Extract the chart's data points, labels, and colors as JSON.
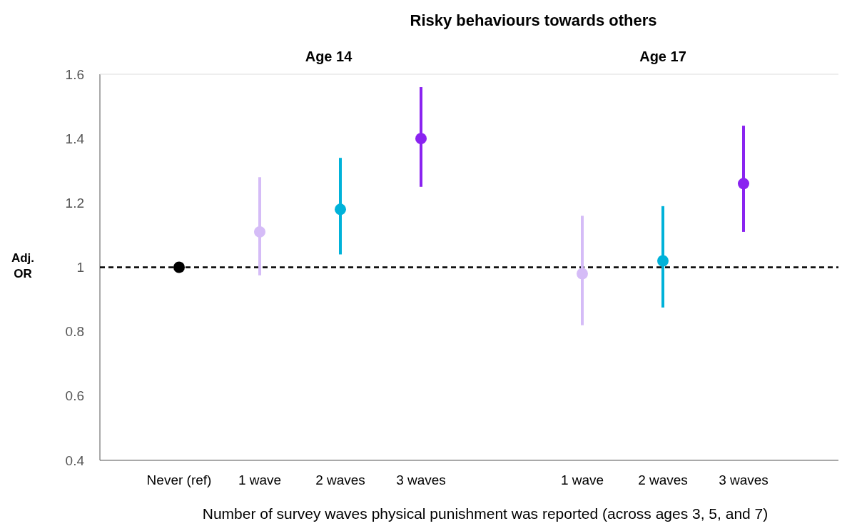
{
  "chart_data": {
    "type": "scatter",
    "title": "Risky behaviours towards others",
    "xlabel": "Number of survey waves physical punishment was reported (across ages 3, 5, and 7)",
    "ylabel": "Adj. OR",
    "categories": [
      "Never (ref)",
      "1 wave",
      "2 waves",
      "3 waves",
      null,
      "1 wave",
      "2 waves",
      "3 waves"
    ],
    "series": [
      {
        "values": [
          1.0,
          1.11,
          1.18,
          1.4,
          null,
          0.98,
          1.02,
          1.26
        ],
        "colors": [
          "#000000",
          "#d5bcf7",
          "#00b2d9",
          "#8a23f0",
          null,
          "#d5bcf7",
          "#00b2d9",
          "#8a23f0"
        ],
        "errors": [
          null,
          [
            0.975,
            1.28
          ],
          [
            1.04,
            1.34
          ],
          [
            1.25,
            1.56
          ],
          null,
          [
            0.82,
            1.16
          ],
          [
            0.875,
            1.19
          ],
          [
            1.11,
            1.44
          ]
        ]
      }
    ],
    "annotations": [
      "Age 14",
      "Age 17"
    ],
    "ylim": [
      0.4,
      1.6
    ],
    "yticks": [
      0.4,
      0.6,
      0.8,
      {
        "value": 1,
        "label": "1"
      },
      1.2,
      1.4,
      1.6
    ],
    "ref_lines": [
      {
        "axis": "y",
        "value": 1,
        "color": "#000000",
        "line_style": "dashed"
      }
    ],
    "marker": "circle",
    "grid": false
  }
}
